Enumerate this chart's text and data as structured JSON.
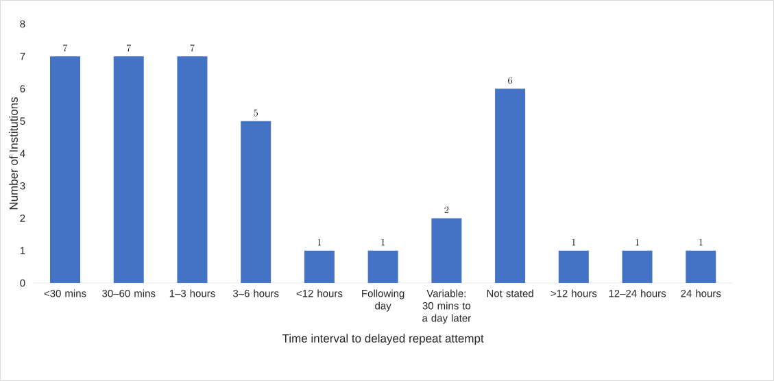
{
  "chart_data": {
    "type": "bar",
    "xlabel": "Time interval to delayed repeat attempt",
    "ylabel": "Number of Institutions",
    "categories": [
      "<30 mins",
      "30–60 mins",
      "1–3 hours",
      "3–6 hours",
      "<12 hours",
      "Following day",
      "Variable: 30 mins to a day later",
      "Not stated",
      ">12 hours",
      "12–24 hours",
      "24 hours"
    ],
    "values": [
      7,
      7,
      7,
      5,
      1,
      1,
      2,
      6,
      1,
      1,
      1
    ],
    "color": "#4472c4",
    "ylim": [
      0,
      8
    ],
    "yticks": [
      0,
      1,
      2,
      3,
      4,
      5,
      6,
      7,
      8
    ],
    "data_labels": true
  }
}
